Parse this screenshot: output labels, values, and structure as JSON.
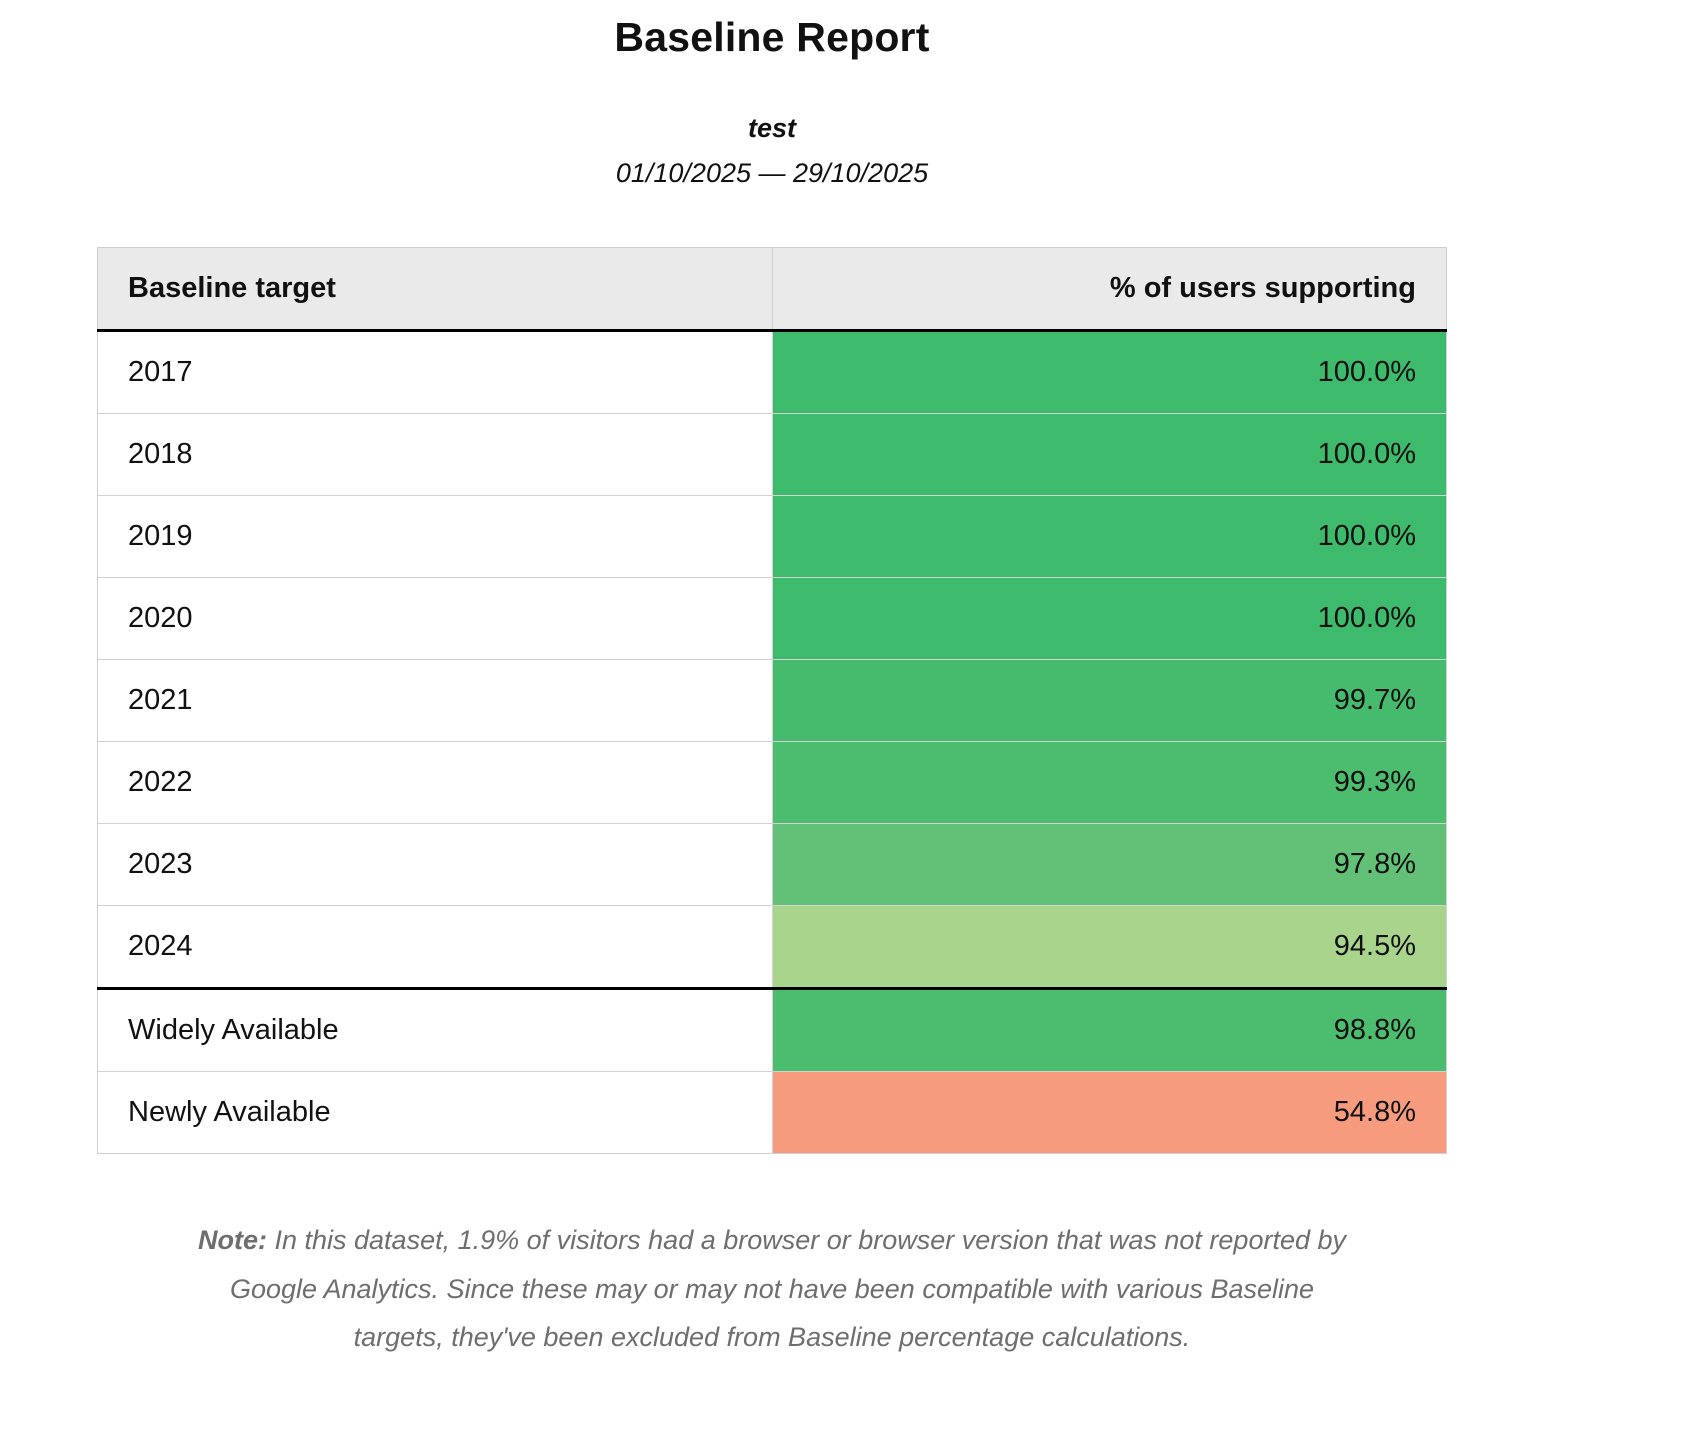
{
  "report": {
    "title": "Baseline Report",
    "subtitle": "test",
    "date_range": "01/10/2025 — 29/10/2025"
  },
  "table": {
    "columns": {
      "target": "Baseline target",
      "percent": "% of users supporting"
    },
    "rows": [
      {
        "label": "2017",
        "value": "100.0%",
        "color": "#3eba6d",
        "thick_top": false
      },
      {
        "label": "2018",
        "value": "100.0%",
        "color": "#3eba6d",
        "thick_top": false
      },
      {
        "label": "2019",
        "value": "100.0%",
        "color": "#3eba6d",
        "thick_top": false
      },
      {
        "label": "2020",
        "value": "100.0%",
        "color": "#3eba6d",
        "thick_top": false
      },
      {
        "label": "2021",
        "value": "99.7%",
        "color": "#46bb6d",
        "thick_top": false
      },
      {
        "label": "2022",
        "value": "99.3%",
        "color": "#4cbc6e",
        "thick_top": false
      },
      {
        "label": "2023",
        "value": "97.8%",
        "color": "#63c077",
        "thick_top": false
      },
      {
        "label": "2024",
        "value": "94.5%",
        "color": "#a9d48c",
        "thick_top": false
      },
      {
        "label": "Widely Available",
        "value": "98.8%",
        "color": "#4cbc6e",
        "thick_top": true
      },
      {
        "label": "Newly Available",
        "value": "54.8%",
        "color": "#f69b7d",
        "thick_top": false
      }
    ]
  },
  "note": {
    "label": "Note:",
    "text": " In this dataset, 1.9% of visitors had a browser or browser version that was not reported by Google Analytics. Since these may or may not have been compatible with various Baseline targets, they've been excluded from Baseline percentage calculations."
  },
  "chart_data": {
    "type": "table",
    "title": "Baseline Report",
    "subtitle": "test",
    "date_range": "01/10/2025 — 29/10/2025",
    "columns": [
      "Baseline target",
      "% of users supporting"
    ],
    "categories": [
      "2017",
      "2018",
      "2019",
      "2020",
      "2021",
      "2022",
      "2023",
      "2024",
      "Widely Available",
      "Newly Available"
    ],
    "values": [
      100.0,
      100.0,
      100.0,
      100.0,
      99.7,
      99.3,
      97.8,
      94.5,
      98.8,
      54.8
    ],
    "unit": "%",
    "cell_colors": [
      "#3eba6d",
      "#3eba6d",
      "#3eba6d",
      "#3eba6d",
      "#46bb6d",
      "#4cbc6e",
      "#63c077",
      "#a9d48c",
      "#4cbc6e",
      "#f69b7d"
    ],
    "note": "In this dataset, 1.9% of visitors had a browser or browser version that was not reported by Google Analytics. Since these may or may not have been compatible with various Baseline targets, they've been excluded from Baseline percentage calculations."
  }
}
